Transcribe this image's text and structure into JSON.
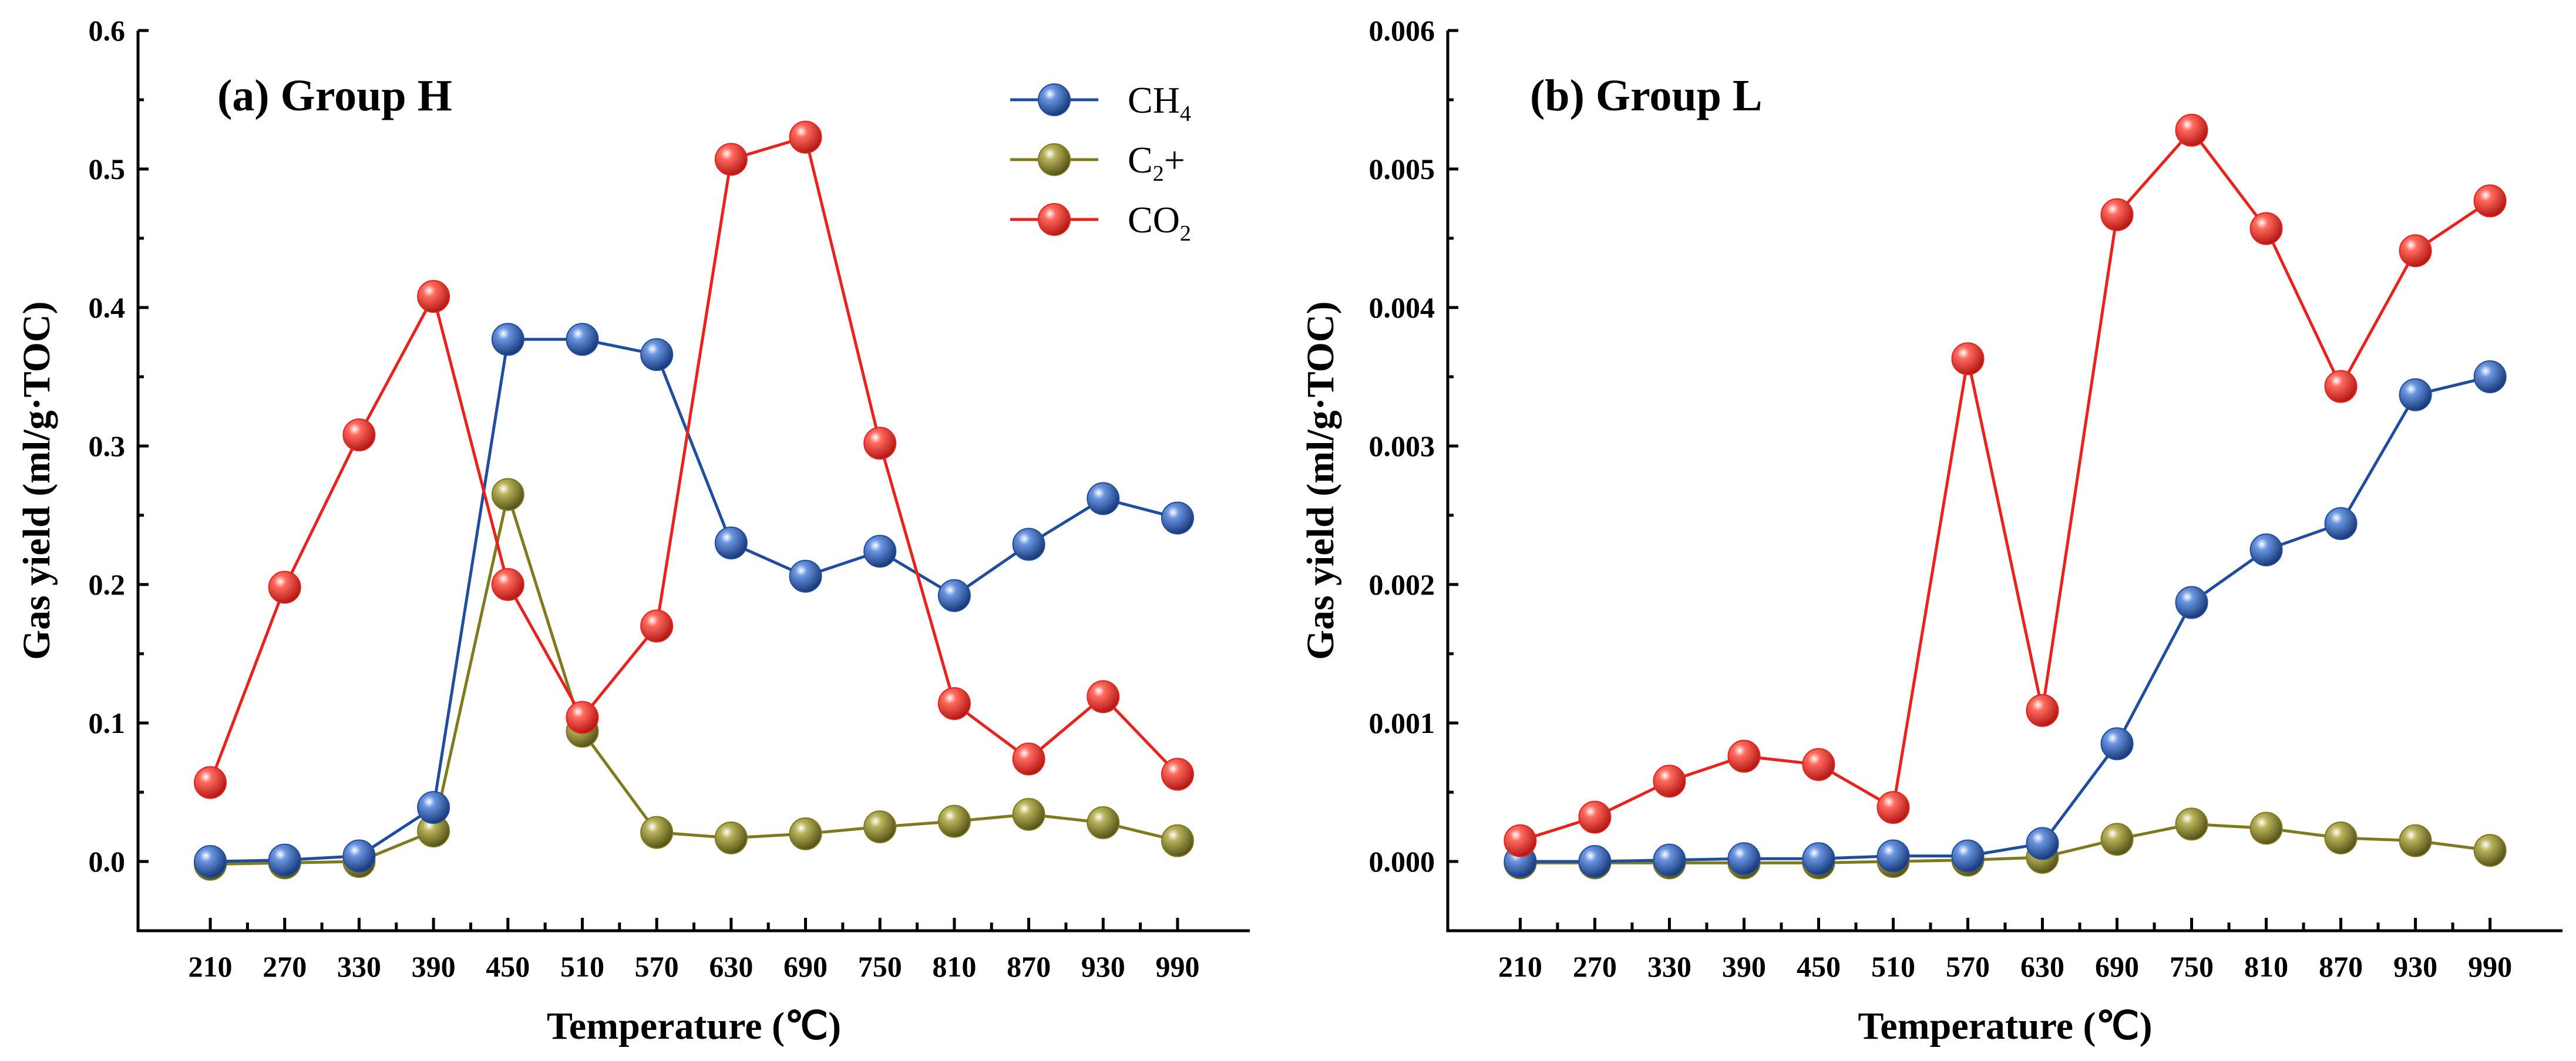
{
  "chart_data": [
    {
      "type": "line",
      "panel_label": "(a) Group H",
      "xlabel": "Temperature (℃)",
      "ylabel": "Gas yield (ml/g·TOC)",
      "categories": [
        "210",
        "270",
        "330",
        "390",
        "450",
        "510",
        "570",
        "630",
        "690",
        "750",
        "810",
        "870",
        "930",
        "990"
      ],
      "ylim": [
        -0.05,
        0.6
      ],
      "yticks": [
        "0.0",
        "0.1",
        "0.2",
        "0.3",
        "0.4",
        "0.5",
        "0.6"
      ],
      "legend_position": "top-right",
      "series": [
        {
          "key": "ch4",
          "name": "CH",
          "sub": "4",
          "color": "#1f4e9e",
          "values": [
            0.0,
            0.001,
            0.004,
            0.039,
            0.377,
            0.377,
            0.366,
            0.23,
            0.206,
            0.224,
            0.192,
            0.229,
            0.262,
            0.248
          ]
        },
        {
          "key": "c2",
          "name": "C",
          "sub": "2",
          "suffix": "+",
          "color": "#7f7a1e",
          "values": [
            -0.002,
            -0.001,
            0.0,
            0.022,
            0.265,
            0.094,
            0.021,
            0.017,
            0.02,
            0.025,
            0.029,
            0.034,
            0.028,
            0.015
          ]
        },
        {
          "key": "co2",
          "name": "CO",
          "sub": "2",
          "color": "#e8231e",
          "values": [
            0.057,
            0.198,
            0.308,
            0.408,
            0.2,
            0.104,
            0.17,
            0.507,
            0.523,
            0.302,
            0.114,
            0.074,
            0.119,
            0.063
          ]
        }
      ]
    },
    {
      "type": "line",
      "panel_label": "(b) Group L",
      "xlabel": "Temperature (℃)",
      "ylabel": "Gas yield (ml/g·TOC)",
      "categories": [
        "210",
        "270",
        "330",
        "390",
        "450",
        "510",
        "570",
        "630",
        "690",
        "750",
        "810",
        "870",
        "930",
        "990"
      ],
      "ylim": [
        -0.0005,
        0.006
      ],
      "yticks": [
        "0.000",
        "0.001",
        "0.002",
        "0.003",
        "0.004",
        "0.005",
        "0.006"
      ],
      "series": [
        {
          "key": "ch4",
          "color": "#1f4e9e",
          "values": [
            0.0,
            0.0,
            1e-05,
            2e-05,
            2e-05,
            4e-05,
            4e-05,
            0.00013,
            0.00085,
            0.00187,
            0.00225,
            0.00244,
            0.00337,
            0.0035
          ]
        },
        {
          "key": "c2",
          "color": "#7f7a1e",
          "values": [
            -1e-05,
            -1e-05,
            -1e-05,
            -1e-05,
            -1e-05,
            0.0,
            1e-05,
            3e-05,
            0.00016,
            0.00027,
            0.00024,
            0.00017,
            0.00015,
            8e-05
          ]
        },
        {
          "key": "co2",
          "color": "#e8231e",
          "values": [
            0.00015,
            0.00032,
            0.00058,
            0.00076,
            0.0007,
            0.00039,
            0.00363,
            0.00109,
            0.00467,
            0.00528,
            0.00457,
            0.00343,
            0.00441,
            0.00477
          ]
        }
      ]
    }
  ]
}
